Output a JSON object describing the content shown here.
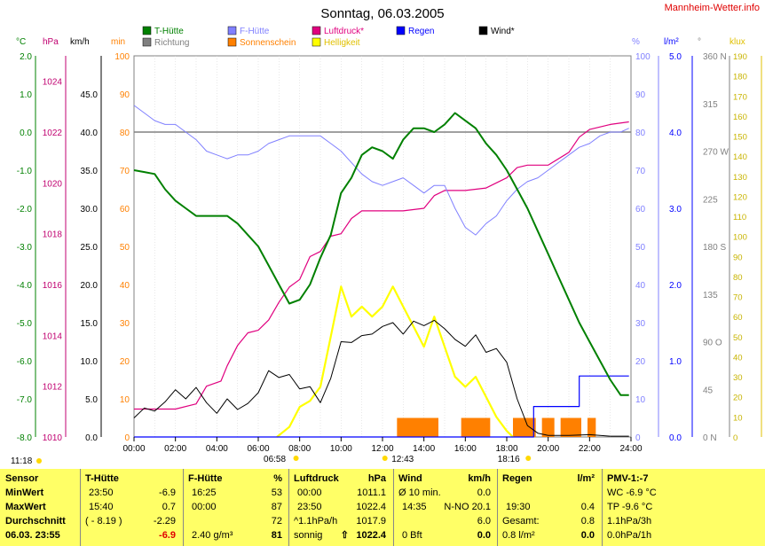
{
  "title": "Sonntag, 06.03.2005",
  "site": "Mannheim-Wetter.info",
  "legend": [
    {
      "label": "T-Hütte",
      "color": "#008000"
    },
    {
      "label": "F-Hütte",
      "color": "#8080ff"
    },
    {
      "label": "Luftdruck*",
      "color": "#e0007f"
    },
    {
      "label": "Regen",
      "color": "#0000ff"
    },
    {
      "label": "Wind*",
      "color": "#000000"
    },
    {
      "label": "Richtung",
      "color": "#808080"
    },
    {
      "label": "Sonnenschein",
      "color": "#ff8000"
    },
    {
      "label": "Helligkeit",
      "color": "#ffff00"
    }
  ],
  "units": {
    "temp": "°C",
    "pressure": "hPa",
    "wind": "km/h",
    "sun": "min",
    "humidity": "%",
    "rain": "l/m²",
    "direction": "°",
    "lux": "klux"
  },
  "axes": {
    "temp": [
      "2.0",
      "1.0",
      "0.0",
      "-1.0",
      "-2.0",
      "-3.0",
      "-4.0",
      "-5.0",
      "-6.0",
      "-7.0",
      "-8.0"
    ],
    "pressure": [
      "1024",
      "1022",
      "1020",
      "1018",
      "1016",
      "1014",
      "1012",
      "1010"
    ],
    "wind": [
      "45.0",
      "40.0",
      "35.0",
      "30.0",
      "25.0",
      "20.0",
      "15.0",
      "10.0",
      "5.0",
      "0.0"
    ],
    "sun": [
      "100",
      "90",
      "80",
      "70",
      "60",
      "50",
      "40",
      "30",
      "20",
      "10",
      "0"
    ],
    "humidity": [
      "100",
      "90",
      "80",
      "70",
      "60",
      "50",
      "40",
      "30",
      "20",
      "10",
      "0"
    ],
    "rain": [
      "5.0",
      "4.0",
      "3.0",
      "2.0",
      "1.0",
      "0.0"
    ],
    "direction": [
      "360 N",
      "315",
      "270 W",
      "225",
      "180 S",
      "135",
      "90 O",
      "45",
      "0 N"
    ],
    "lux": [
      "190",
      "180",
      "170",
      "160",
      "150",
      "140",
      "130",
      "120",
      "110",
      "100",
      "90",
      "80",
      "70",
      "60",
      "50",
      "40",
      "30",
      "20",
      "10",
      "0"
    ],
    "time": [
      "00:00",
      "02:00",
      "04:00",
      "06:00",
      "08:00",
      "10:00",
      "12:00",
      "14:00",
      "16:00",
      "18:00",
      "20:00",
      "22:00",
      "24:00"
    ]
  },
  "sun_events": {
    "rise": "06:58",
    "noon": "12:43",
    "set": "18:16",
    "daylength": "11:18"
  },
  "chart_data": {
    "type": "line",
    "x_unit": "hour",
    "x_range": [
      0,
      24
    ],
    "series": [
      {
        "name": "T-Hütte",
        "axis": "°C",
        "range": [
          -8,
          2
        ],
        "color": "#008000",
        "points": [
          [
            0,
            -1.0
          ],
          [
            0.5,
            -1.05
          ],
          [
            1,
            -1.1
          ],
          [
            1.5,
            -1.5
          ],
          [
            2,
            -1.8
          ],
          [
            2.5,
            -2.0
          ],
          [
            3,
            -2.2
          ],
          [
            3.5,
            -2.2
          ],
          [
            4,
            -2.2
          ],
          [
            4.5,
            -2.2
          ],
          [
            5,
            -2.4
          ],
          [
            5.5,
            -2.7
          ],
          [
            6,
            -3.0
          ],
          [
            6.5,
            -3.5
          ],
          [
            7,
            -4.0
          ],
          [
            7.5,
            -4.5
          ],
          [
            8,
            -4.4
          ],
          [
            8.5,
            -4.0
          ],
          [
            9,
            -3.3
          ],
          [
            9.5,
            -2.7
          ],
          [
            10,
            -1.6
          ],
          [
            10.5,
            -1.2
          ],
          [
            11,
            -0.6
          ],
          [
            11.5,
            -0.4
          ],
          [
            12,
            -0.5
          ],
          [
            12.5,
            -0.7
          ],
          [
            13,
            -0.2
          ],
          [
            13.5,
            0.1
          ],
          [
            14,
            0.1
          ],
          [
            14.5,
            0.0
          ],
          [
            15,
            0.2
          ],
          [
            15.5,
            0.5
          ],
          [
            16,
            0.3
          ],
          [
            16.5,
            0.1
          ],
          [
            17,
            -0.3
          ],
          [
            17.5,
            -0.6
          ],
          [
            18,
            -1.0
          ],
          [
            18.5,
            -1.5
          ],
          [
            19,
            -2.0
          ],
          [
            19.5,
            -2.6
          ],
          [
            20,
            -3.2
          ],
          [
            20.5,
            -3.8
          ],
          [
            21,
            -4.4
          ],
          [
            21.5,
            -5.0
          ],
          [
            22,
            -5.5
          ],
          [
            22.5,
            -6.0
          ],
          [
            23,
            -6.5
          ],
          [
            23.5,
            -6.9
          ],
          [
            23.9,
            -6.9
          ]
        ]
      },
      {
        "name": "F-Hütte",
        "axis": "%",
        "range": [
          0,
          100
        ],
        "color": "#8080ff",
        "points": [
          [
            0,
            87
          ],
          [
            0.5,
            85
          ],
          [
            1,
            83
          ],
          [
            1.5,
            82
          ],
          [
            2,
            82
          ],
          [
            2.5,
            80
          ],
          [
            3,
            78
          ],
          [
            3.5,
            75
          ],
          [
            4,
            74
          ],
          [
            4.5,
            73
          ],
          [
            5,
            74
          ],
          [
            5.5,
            74
          ],
          [
            6,
            75
          ],
          [
            6.5,
            77
          ],
          [
            7,
            78
          ],
          [
            7.5,
            79
          ],
          [
            8,
            79
          ],
          [
            8.5,
            79
          ],
          [
            9,
            79
          ],
          [
            9.5,
            77
          ],
          [
            10,
            75
          ],
          [
            10.5,
            72
          ],
          [
            11,
            69
          ],
          [
            11.5,
            67
          ],
          [
            12,
            66
          ],
          [
            12.5,
            67
          ],
          [
            13,
            68
          ],
          [
            13.5,
            66
          ],
          [
            14,
            64
          ],
          [
            14.5,
            66
          ],
          [
            15,
            66
          ],
          [
            15.5,
            60
          ],
          [
            16,
            55
          ],
          [
            16.5,
            53
          ],
          [
            17,
            56
          ],
          [
            17.5,
            58
          ],
          [
            18,
            62
          ],
          [
            18.5,
            65
          ],
          [
            19,
            67
          ],
          [
            19.5,
            68
          ],
          [
            20,
            70
          ],
          [
            20.5,
            72
          ],
          [
            21,
            74
          ],
          [
            21.5,
            76
          ],
          [
            22,
            77
          ],
          [
            22.5,
            79
          ],
          [
            23,
            80
          ],
          [
            23.5,
            80
          ],
          [
            23.9,
            81
          ]
        ]
      },
      {
        "name": "Luftdruck*",
        "axis": "hPa",
        "range": [
          1010,
          1025
        ],
        "color": "#e0007f",
        "points": [
          [
            0,
            1011.1
          ],
          [
            2,
            1011.1
          ],
          [
            3,
            1011.3
          ],
          [
            3.5,
            1012.0
          ],
          [
            4.2,
            1012.2
          ],
          [
            4.5,
            1012.8
          ],
          [
            5,
            1013.6
          ],
          [
            5.5,
            1014.1
          ],
          [
            6,
            1014.2
          ],
          [
            6.5,
            1014.6
          ],
          [
            7,
            1015.3
          ],
          [
            7.5,
            1015.9
          ],
          [
            8,
            1016.2
          ],
          [
            8.5,
            1017.1
          ],
          [
            9,
            1017.3
          ],
          [
            9.5,
            1017.9
          ],
          [
            10,
            1018.0
          ],
          [
            10.5,
            1018.6
          ],
          [
            11,
            1018.9
          ],
          [
            12,
            1018.9
          ],
          [
            13,
            1018.9
          ],
          [
            14,
            1019.0
          ],
          [
            14.5,
            1019.5
          ],
          [
            15,
            1019.7
          ],
          [
            16,
            1019.7
          ],
          [
            17,
            1019.8
          ],
          [
            18,
            1020.2
          ],
          [
            18.5,
            1020.6
          ],
          [
            19,
            1020.7
          ],
          [
            20,
            1020.7
          ],
          [
            21,
            1021.2
          ],
          [
            21.5,
            1021.8
          ],
          [
            22,
            1022.1
          ],
          [
            23,
            1022.3
          ],
          [
            23.9,
            1022.4
          ]
        ]
      },
      {
        "name": "Regen",
        "axis": "l/m²",
        "range": [
          0,
          5
        ],
        "color": "#0000ff",
        "points": [
          [
            0,
            0
          ],
          [
            19.3,
            0
          ],
          [
            19.3,
            0.4
          ],
          [
            21.5,
            0.4
          ],
          [
            21.5,
            0.8
          ],
          [
            23.9,
            0.8
          ]
        ]
      },
      {
        "name": "Wind*",
        "axis": "km/h",
        "range": [
          0,
          50
        ],
        "color": "#000000",
        "points": [
          [
            0,
            2.5
          ],
          [
            0.5,
            3.8
          ],
          [
            1,
            3.4
          ],
          [
            1.5,
            4.6
          ],
          [
            2,
            6.2
          ],
          [
            2.5,
            5.0
          ],
          [
            3,
            6.5
          ],
          [
            3.5,
            4.5
          ],
          [
            4,
            3.1
          ],
          [
            4.5,
            5.0
          ],
          [
            5,
            3.6
          ],
          [
            5.5,
            4.4
          ],
          [
            6,
            5.8
          ],
          [
            6.5,
            8.7
          ],
          [
            7,
            7.8
          ],
          [
            7.5,
            8.2
          ],
          [
            8,
            6.3
          ],
          [
            8.5,
            6.6
          ],
          [
            9,
            4.5
          ],
          [
            9.5,
            7.7
          ],
          [
            10,
            12.5
          ],
          [
            10.5,
            12.4
          ],
          [
            11,
            13.3
          ],
          [
            11.5,
            13.5
          ],
          [
            12,
            14.5
          ],
          [
            12.5,
            15.0
          ],
          [
            13,
            13.5
          ],
          [
            13.5,
            15.2
          ],
          [
            14,
            14.6
          ],
          [
            14.5,
            15.3
          ],
          [
            15,
            14.2
          ],
          [
            15.5,
            12.8
          ],
          [
            16,
            11.9
          ],
          [
            16.5,
            13.4
          ],
          [
            17,
            11.1
          ],
          [
            17.5,
            11.6
          ],
          [
            18,
            9.8
          ],
          [
            18.5,
            5.0
          ],
          [
            19,
            1.5
          ],
          [
            19.5,
            0.5
          ],
          [
            20,
            0.2
          ],
          [
            21,
            0.2
          ],
          [
            22,
            0.3
          ],
          [
            23,
            0.1
          ],
          [
            23.9,
            0.1
          ]
        ]
      },
      {
        "name": "Helligkeit",
        "axis": "klux",
        "range": [
          0,
          190
        ],
        "color": "#ffff00",
        "points": [
          [
            6.9,
            0
          ],
          [
            7.5,
            5
          ],
          [
            8,
            15
          ],
          [
            8.5,
            18
          ],
          [
            9,
            25
          ],
          [
            9.5,
            50
          ],
          [
            10,
            75
          ],
          [
            10.5,
            60
          ],
          [
            11,
            65
          ],
          [
            11.5,
            60
          ],
          [
            12,
            65
          ],
          [
            12.5,
            75
          ],
          [
            13,
            65
          ],
          [
            13.5,
            55
          ],
          [
            14,
            45
          ],
          [
            14.5,
            60
          ],
          [
            15,
            45
          ],
          [
            15.5,
            30
          ],
          [
            16,
            25
          ],
          [
            16.5,
            30
          ],
          [
            17,
            20
          ],
          [
            17.5,
            10
          ],
          [
            18,
            3
          ],
          [
            18.3,
            0
          ]
        ]
      }
    ],
    "sunshine_bars": [
      [
        12.7,
        14.7
      ],
      [
        15.8,
        17.2
      ],
      [
        18.3,
        19.4
      ],
      [
        19.7,
        20.3
      ],
      [
        20.6,
        21.6
      ],
      [
        21.9,
        22.3
      ]
    ],
    "reference_line": {
      "axis": "min",
      "value": 80
    }
  },
  "panel": {
    "columns": [
      {
        "header": "Sensor",
        "rows": [
          "MinWert",
          "MaxWert",
          "Durchschnitt",
          "06.03. 23:55"
        ]
      },
      {
        "header": "T-Hütte",
        "rows": [
          [
            "23:50",
            "-6.9"
          ],
          [
            "15:40",
            "0.7"
          ],
          [
            "( - 8.19 )",
            "-2.29"
          ],
          [
            "",
            "-6.9"
          ]
        ]
      },
      {
        "header": "F-Hütte",
        "unit": "%",
        "rows": [
          [
            "16:25",
            "53"
          ],
          [
            "00:00",
            "87"
          ],
          [
            "",
            "72"
          ],
          [
            "2.40 g/m³",
            "81"
          ]
        ]
      },
      {
        "header": "Luftdruck",
        "unit": "hPa",
        "rows": [
          [
            "00:00",
            "1011.1"
          ],
          [
            "23:50",
            "1022.4"
          ],
          [
            "^1.1hPa/h",
            "1017.9"
          ],
          [
            "sonnig",
            "1022.4"
          ]
        ]
      },
      {
        "header": "Wind",
        "unit": "km/h",
        "rows": [
          [
            "Ø 10 min.",
            "0.0"
          ],
          [
            "14:35",
            "N-NO 20.1"
          ],
          [
            "",
            "6.0"
          ],
          [
            "0 Bft",
            "0.0"
          ]
        ]
      },
      {
        "header": "Regen",
        "unit": "l/m²",
        "rows": [
          [
            "",
            "",
            ""
          ],
          [
            "19:30",
            "0.4"
          ],
          [
            "Gesamt:",
            "0.8"
          ],
          [
            "0.8 l/m²",
            "0.0"
          ]
        ]
      },
      {
        "header": "PMV-1:-7",
        "rows": [
          "WC -6.9 °C",
          "TP -9.6 °C",
          "1.1hPa/3h",
          "0.0hPa/1h"
        ]
      }
    ]
  }
}
